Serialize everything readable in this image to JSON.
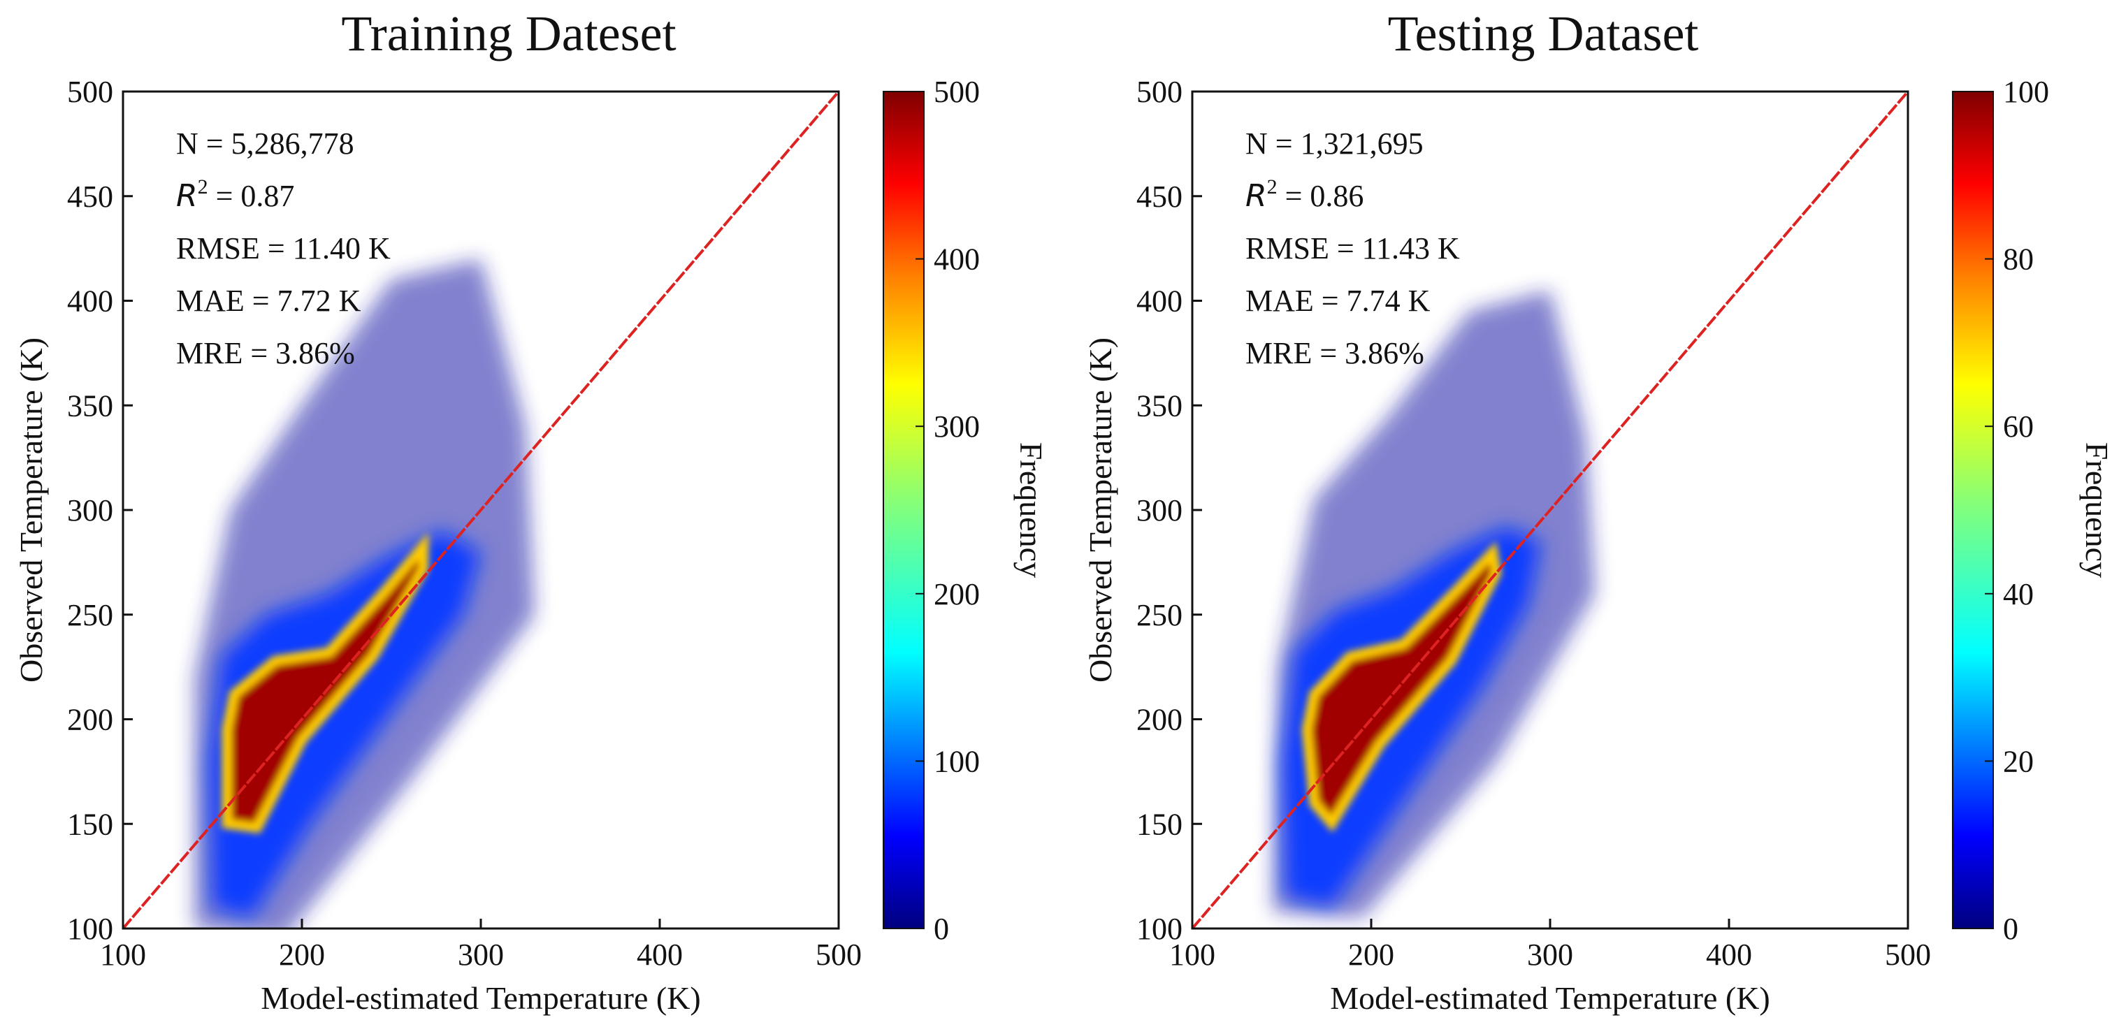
{
  "colors": {
    "identity_line": "#dd2222",
    "axes": "#111111",
    "colormap": [
      "#00007f",
      "#0000ff",
      "#007fff",
      "#00ffff",
      "#7fff7f",
      "#ffff00",
      "#ff7f00",
      "#ff0000",
      "#7f0000"
    ]
  },
  "chart_data": [
    {
      "type": "heatmap",
      "title": "Training Dateset",
      "xlabel": "Model-estimated Temperature (K)",
      "ylabel": "Observed Temperature (K)",
      "xlim": [
        100,
        500
      ],
      "ylim": [
        100,
        500
      ],
      "xticks": [
        "100",
        "200",
        "300",
        "400",
        "500"
      ],
      "yticks": [
        "100",
        "150",
        "200",
        "250",
        "300",
        "350",
        "400",
        "450",
        "500"
      ],
      "grid": false,
      "identity_line": true,
      "colorbar": {
        "label": "Frequency",
        "range": [
          0,
          500
        ],
        "ticks": [
          "0",
          "100",
          "200",
          "300",
          "400",
          "500"
        ]
      },
      "stats": {
        "n": "N = 5,286,778",
        "r2_symbol": "R",
        "r2_exp": "2",
        "r2_value": " = 0.87",
        "rmse": "RMSE = 11.40 K",
        "mae": "MAE = 7.72 K",
        "mre": "MRE = 3.86%"
      },
      "density_core": [
        [
          158,
          150
        ],
        [
          175,
          148
        ],
        [
          200,
          190
        ],
        [
          240,
          230
        ],
        [
          268,
          272
        ],
        [
          268,
          283
        ],
        [
          245,
          260
        ],
        [
          215,
          232
        ],
        [
          185,
          228
        ],
        [
          162,
          212
        ],
        [
          158,
          195
        ]
      ],
      "density_halo": [
        [
          150,
          110
        ],
        [
          172,
          105
        ],
        [
          205,
          150
        ],
        [
          260,
          215
        ],
        [
          290,
          250
        ],
        [
          300,
          280
        ],
        [
          278,
          290
        ],
        [
          248,
          278
        ],
        [
          215,
          260
        ],
        [
          180,
          250
        ],
        [
          155,
          230
        ],
        [
          148,
          180
        ]
      ],
      "density_scatter": [
        [
          140,
          100
        ],
        [
          190,
          95
        ],
        [
          260,
          170
        ],
        [
          330,
          250
        ],
        [
          325,
          340
        ],
        [
          300,
          420
        ],
        [
          250,
          410
        ],
        [
          200,
          350
        ],
        [
          160,
          300
        ],
        [
          140,
          220
        ]
      ]
    },
    {
      "type": "heatmap",
      "title": "Testing Dataset",
      "xlabel": "Model-estimated Temperature (K)",
      "ylabel": "Observed Temperature (K)",
      "xlim": [
        100,
        500
      ],
      "ylim": [
        100,
        500
      ],
      "xticks": [
        "100",
        "200",
        "300",
        "400",
        "500"
      ],
      "yticks": [
        "100",
        "150",
        "200",
        "250",
        "300",
        "350",
        "400",
        "450",
        "500"
      ],
      "grid": false,
      "identity_line": true,
      "colorbar": {
        "label": "Frequency",
        "range": [
          0,
          100
        ],
        "ticks": [
          "0",
          "20",
          "40",
          "60",
          "80",
          "100"
        ]
      },
      "stats": {
        "n": "N = 1,321,695",
        "r2_symbol": "R",
        "r2_exp": "2",
        "r2_value": " = 0.86",
        "rmse": "RMSE = 11.43 K",
        "mae": "MAE = 7.74 K",
        "mre": "MRE = 3.86%"
      },
      "density_core": [
        [
          168,
          160
        ],
        [
          178,
          150
        ],
        [
          205,
          188
        ],
        [
          245,
          228
        ],
        [
          270,
          270
        ],
        [
          268,
          280
        ],
        [
          248,
          262
        ],
        [
          218,
          236
        ],
        [
          188,
          230
        ],
        [
          168,
          212
        ],
        [
          164,
          195
        ]
      ],
      "density_halo": [
        [
          152,
          115
        ],
        [
          178,
          110
        ],
        [
          210,
          150
        ],
        [
          262,
          215
        ],
        [
          288,
          255
        ],
        [
          295,
          285
        ],
        [
          275,
          292
        ],
        [
          245,
          280
        ],
        [
          212,
          262
        ],
        [
          180,
          252
        ],
        [
          157,
          232
        ],
        [
          150,
          180
        ]
      ],
      "density_scatter": [
        [
          145,
          108
        ],
        [
          195,
          105
        ],
        [
          270,
          180
        ],
        [
          325,
          260
        ],
        [
          320,
          335
        ],
        [
          300,
          405
        ],
        [
          255,
          395
        ],
        [
          210,
          345
        ],
        [
          168,
          305
        ],
        [
          148,
          225
        ]
      ]
    }
  ]
}
